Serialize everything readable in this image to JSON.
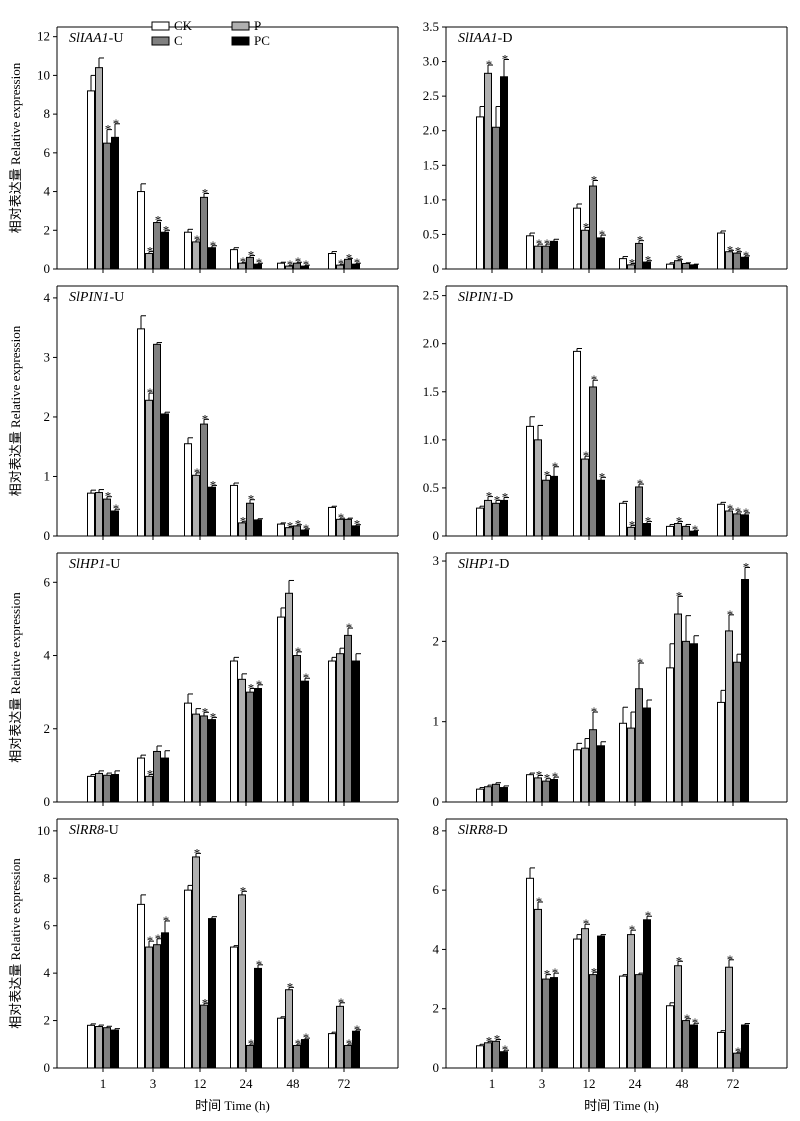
{
  "figure": {
    "ylabel": "相对表达量 Relative expression",
    "xlabel": "时间 Time (h)"
  },
  "legend": {
    "placement": "top-center of first panel",
    "items": [
      {
        "label": "CK",
        "color": "#ffffff"
      },
      {
        "label": "P",
        "color": "#b0b0b0"
      },
      {
        "label": "C",
        "color": "#808080"
      },
      {
        "label": "PC",
        "color": "#000000"
      }
    ]
  },
  "colors": {
    "CK": "#ffffff",
    "P": "#b0b0b0",
    "C": "#808080",
    "PC": "#000000",
    "axis": "#000000"
  },
  "chart_data": [
    {
      "type": "bar",
      "gene": "SlIAA1",
      "suffix": "-U",
      "categories": [
        "1",
        "3",
        "12",
        "24",
        "48",
        "72"
      ],
      "ylim": [
        0,
        12.5
      ],
      "yticks": [
        0,
        2,
        4,
        6,
        8,
        10,
        12
      ],
      "ytick_labels": [
        "0",
        "2",
        "4",
        "6",
        "8",
        "10",
        "12"
      ],
      "series": [
        {
          "name": "CK",
          "values": [
            9.2,
            4.0,
            1.9,
            1.0,
            0.3,
            0.8
          ],
          "err": [
            0.8,
            0.4,
            0.15,
            0.1,
            0.05,
            0.1
          ],
          "sig": [
            false,
            false,
            false,
            false,
            false,
            false
          ]
        },
        {
          "name": "P",
          "values": [
            10.4,
            0.8,
            1.4,
            0.3,
            0.15,
            0.2
          ],
          "err": [
            0.5,
            0.1,
            0.1,
            0.05,
            0.05,
            0.05
          ],
          "sig": [
            false,
            true,
            true,
            true,
            true,
            true
          ]
        },
        {
          "name": "C",
          "values": [
            6.5,
            2.4,
            3.7,
            0.6,
            0.3,
            0.5
          ],
          "err": [
            0.7,
            0.1,
            0.2,
            0.1,
            0.05,
            0.05
          ],
          "sig": [
            true,
            true,
            true,
            true,
            true,
            true
          ]
        },
        {
          "name": "PC",
          "values": [
            6.8,
            1.9,
            1.1,
            0.25,
            0.15,
            0.25
          ],
          "err": [
            0.7,
            0.1,
            0.1,
            0.05,
            0.05,
            0.05
          ],
          "sig": [
            true,
            true,
            true,
            true,
            true,
            true
          ]
        }
      ]
    },
    {
      "type": "bar",
      "gene": "SlIAA1",
      "suffix": "-D",
      "categories": [
        "1",
        "3",
        "12",
        "24",
        "48",
        "72"
      ],
      "ylim": [
        0,
        3.5
      ],
      "yticks": [
        0,
        0.5,
        1.0,
        1.5,
        2.0,
        2.5,
        3.0,
        3.5
      ],
      "ytick_labels": [
        "0",
        "0.5",
        "1.0",
        "1.5",
        "2.0",
        "2.5",
        "3.0",
        "3.5"
      ],
      "series": [
        {
          "name": "CK",
          "values": [
            2.2,
            0.48,
            0.88,
            0.15,
            0.07,
            0.52
          ],
          "err": [
            0.15,
            0.04,
            0.06,
            0.03,
            0.02,
            0.03
          ],
          "sig": [
            false,
            false,
            false,
            false,
            false,
            false
          ]
        },
        {
          "name": "P",
          "values": [
            2.83,
            0.33,
            0.56,
            0.06,
            0.12,
            0.25
          ],
          "err": [
            0.12,
            0.03,
            0.04,
            0.02,
            0.02,
            0.02
          ],
          "sig": [
            true,
            true,
            true,
            true,
            true,
            true
          ]
        },
        {
          "name": "C",
          "values": [
            2.05,
            0.33,
            1.2,
            0.37,
            0.08,
            0.23
          ],
          "err": [
            0.3,
            0.03,
            0.08,
            0.04,
            0.01,
            0.02
          ],
          "sig": [
            false,
            true,
            true,
            true,
            false,
            true
          ]
        },
        {
          "name": "PC",
          "values": [
            2.78,
            0.4,
            0.45,
            0.1,
            0.06,
            0.17
          ],
          "err": [
            0.25,
            0.03,
            0.04,
            0.02,
            0.01,
            0.02
          ],
          "sig": [
            true,
            false,
            true,
            true,
            false,
            true
          ]
        }
      ]
    },
    {
      "type": "bar",
      "gene": "SlPIN1",
      "suffix": "-U",
      "categories": [
        "1",
        "3",
        "12",
        "24",
        "48",
        "72"
      ],
      "ylim": [
        0,
        4.2
      ],
      "yticks": [
        0,
        1,
        2,
        3,
        4
      ],
      "ytick_labels": [
        "0",
        "1",
        "2",
        "3",
        "4"
      ],
      "series": [
        {
          "name": "CK",
          "values": [
            0.72,
            3.48,
            1.55,
            0.85,
            0.2,
            0.48
          ],
          "err": [
            0.05,
            0.22,
            0.1,
            0.04,
            0.02,
            0.02
          ],
          "sig": [
            false,
            false,
            false,
            false,
            false,
            false
          ]
        },
        {
          "name": "P",
          "values": [
            0.73,
            2.28,
            1.02,
            0.22,
            0.14,
            0.28
          ],
          "err": [
            0.05,
            0.12,
            0.04,
            0.02,
            0.02,
            0.02
          ],
          "sig": [
            false,
            true,
            true,
            true,
            true,
            true
          ]
        },
        {
          "name": "C",
          "values": [
            0.62,
            3.22,
            1.88,
            0.55,
            0.17,
            0.28
          ],
          "err": [
            0.04,
            0.03,
            0.08,
            0.06,
            0.02,
            0.02
          ],
          "sig": [
            true,
            false,
            true,
            true,
            true,
            false
          ]
        },
        {
          "name": "PC",
          "values": [
            0.42,
            2.05,
            0.82,
            0.27,
            0.1,
            0.17
          ],
          "err": [
            0.03,
            0.03,
            0.03,
            0.02,
            0.02,
            0.02
          ],
          "sig": [
            true,
            false,
            true,
            false,
            true,
            true
          ]
        }
      ]
    },
    {
      "type": "bar",
      "gene": "SlPIN1",
      "suffix": "-D",
      "categories": [
        "1",
        "3",
        "12",
        "24",
        "48",
        "72"
      ],
      "ylim": [
        0,
        2.6
      ],
      "yticks": [
        0,
        0.5,
        1.0,
        1.5,
        2.0,
        2.5
      ],
      "ytick_labels": [
        "0",
        "0.5",
        "1.0",
        "1.5",
        "2.0",
        "2.5"
      ],
      "series": [
        {
          "name": "CK",
          "values": [
            0.29,
            1.14,
            1.92,
            0.34,
            0.1,
            0.33
          ],
          "err": [
            0.02,
            0.1,
            0.03,
            0.02,
            0.02,
            0.02
          ],
          "sig": [
            false,
            false,
            false,
            false,
            false,
            false
          ]
        },
        {
          "name": "P",
          "values": [
            0.37,
            1.0,
            0.8,
            0.09,
            0.13,
            0.26
          ],
          "err": [
            0.04,
            0.15,
            0.03,
            0.02,
            0.02,
            0.02
          ],
          "sig": [
            true,
            false,
            true,
            true,
            true,
            true
          ]
        },
        {
          "name": "C",
          "values": [
            0.34,
            0.58,
            1.55,
            0.51,
            0.1,
            0.23
          ],
          "err": [
            0.03,
            0.05,
            0.07,
            0.03,
            0.02,
            0.02
          ],
          "sig": [
            true,
            true,
            true,
            true,
            false,
            true
          ]
        },
        {
          "name": "PC",
          "values": [
            0.37,
            0.62,
            0.58,
            0.13,
            0.05,
            0.22
          ],
          "err": [
            0.03,
            0.1,
            0.03,
            0.02,
            0.01,
            0.02
          ],
          "sig": [
            true,
            true,
            true,
            true,
            true,
            true
          ]
        }
      ]
    },
    {
      "type": "bar",
      "gene": "SlHP1",
      "suffix": "-U",
      "categories": [
        "1",
        "3",
        "12",
        "24",
        "48",
        "72"
      ],
      "ylim": [
        0,
        6.8
      ],
      "yticks": [
        0,
        2,
        4,
        6
      ],
      "ytick_labels": [
        "0",
        "2",
        "4",
        "6"
      ],
      "series": [
        {
          "name": "CK",
          "values": [
            0.7,
            1.2,
            2.7,
            3.85,
            5.05,
            3.85
          ],
          "err": [
            0.05,
            0.08,
            0.25,
            0.1,
            0.25,
            0.1
          ],
          "sig": [
            false,
            false,
            false,
            false,
            false,
            false
          ]
        },
        {
          "name": "P",
          "values": [
            0.78,
            0.7,
            2.4,
            3.35,
            5.7,
            4.05
          ],
          "err": [
            0.07,
            0.05,
            0.15,
            0.15,
            0.35,
            0.15
          ],
          "sig": [
            false,
            true,
            false,
            false,
            false,
            false
          ]
        },
        {
          "name": "C",
          "values": [
            0.73,
            1.38,
            2.35,
            3.0,
            4.0,
            4.55
          ],
          "err": [
            0.06,
            0.15,
            0.1,
            0.1,
            0.1,
            0.2
          ],
          "sig": [
            false,
            false,
            true,
            true,
            true,
            true
          ]
        },
        {
          "name": "PC",
          "values": [
            0.75,
            1.2,
            2.25,
            3.1,
            3.3,
            3.85
          ],
          "err": [
            0.1,
            0.2,
            0.06,
            0.1,
            0.08,
            0.2
          ],
          "sig": [
            false,
            false,
            true,
            true,
            true,
            false
          ]
        }
      ]
    },
    {
      "type": "bar",
      "gene": "SlHP1",
      "suffix": "-D",
      "categories": [
        "1",
        "3",
        "12",
        "24",
        "48",
        "72"
      ],
      "ylim": [
        0,
        3.1
      ],
      "yticks": [
        0,
        1,
        2,
        3
      ],
      "ytick_labels": [
        "0",
        "1",
        "2",
        "3"
      ],
      "series": [
        {
          "name": "CK",
          "values": [
            0.16,
            0.34,
            0.65,
            0.98,
            1.67,
            1.24
          ],
          "err": [
            0.02,
            0.02,
            0.08,
            0.2,
            0.3,
            0.15
          ],
          "sig": [
            false,
            false,
            false,
            false,
            false,
            false
          ]
        },
        {
          "name": "P",
          "values": [
            0.19,
            0.3,
            0.67,
            0.92,
            2.34,
            2.13
          ],
          "err": [
            0.02,
            0.03,
            0.12,
            0.2,
            0.22,
            0.2
          ],
          "sig": [
            false,
            true,
            false,
            false,
            true,
            true
          ]
        },
        {
          "name": "C",
          "values": [
            0.22,
            0.26,
            0.9,
            1.41,
            2.0,
            1.74
          ],
          "err": [
            0.02,
            0.03,
            0.22,
            0.32,
            0.32,
            0.1
          ],
          "sig": [
            false,
            true,
            true,
            true,
            false,
            false
          ]
        },
        {
          "name": "PC",
          "values": [
            0.18,
            0.28,
            0.7,
            1.17,
            1.97,
            2.77
          ],
          "err": [
            0.02,
            0.03,
            0.05,
            0.1,
            0.1,
            0.15
          ],
          "sig": [
            false,
            true,
            false,
            false,
            false,
            true
          ]
        }
      ]
    },
    {
      "type": "bar",
      "gene": "SlRR8",
      "suffix": "-U",
      "categories": [
        "1",
        "3",
        "12",
        "24",
        "48",
        "72"
      ],
      "ylim": [
        0,
        10.5
      ],
      "yticks": [
        0,
        2,
        4,
        6,
        8,
        10
      ],
      "ytick_labels": [
        "0",
        "2",
        "4",
        "6",
        "8",
        "10"
      ],
      "series": [
        {
          "name": "CK",
          "values": [
            1.8,
            6.9,
            7.5,
            5.1,
            2.1,
            1.45
          ],
          "err": [
            0.06,
            0.4,
            0.2,
            0.06,
            0.06,
            0.06
          ],
          "sig": [
            false,
            false,
            false,
            false,
            false,
            false
          ]
        },
        {
          "name": "P",
          "values": [
            1.75,
            5.1,
            8.9,
            7.3,
            3.3,
            2.6
          ],
          "err": [
            0.06,
            0.25,
            0.15,
            0.15,
            0.1,
            0.15
          ],
          "sig": [
            false,
            true,
            true,
            true,
            true,
            true
          ]
        },
        {
          "name": "C",
          "values": [
            1.7,
            5.2,
            2.65,
            0.95,
            0.95,
            0.95
          ],
          "err": [
            0.06,
            0.25,
            0.08,
            0.06,
            0.06,
            0.06
          ],
          "sig": [
            false,
            true,
            true,
            true,
            true,
            true
          ]
        },
        {
          "name": "PC",
          "values": [
            1.6,
            5.7,
            6.3,
            4.2,
            1.2,
            1.55
          ],
          "err": [
            0.06,
            0.5,
            0.08,
            0.15,
            0.06,
            0.06
          ],
          "sig": [
            false,
            true,
            false,
            true,
            true,
            true
          ]
        }
      ]
    },
    {
      "type": "bar",
      "gene": "SlRR8",
      "suffix": "-D",
      "categories": [
        "1",
        "3",
        "12",
        "24",
        "48",
        "72"
      ],
      "ylim": [
        0,
        8.4
      ],
      "yticks": [
        0,
        2,
        4,
        6,
        8
      ],
      "ytick_labels": [
        "0",
        "2",
        "4",
        "6",
        "8"
      ],
      "series": [
        {
          "name": "CK",
          "values": [
            0.75,
            6.4,
            4.35,
            3.1,
            2.1,
            1.2
          ],
          "err": [
            0.05,
            0.35,
            0.15,
            0.05,
            0.1,
            0.06
          ],
          "sig": [
            false,
            false,
            false,
            false,
            false,
            false
          ]
        },
        {
          "name": "P",
          "values": [
            0.85,
            5.35,
            4.7,
            4.5,
            3.45,
            3.4
          ],
          "err": [
            0.05,
            0.25,
            0.15,
            0.15,
            0.15,
            0.25
          ],
          "sig": [
            true,
            true,
            true,
            true,
            true,
            true
          ]
        },
        {
          "name": "C",
          "values": [
            0.9,
            3.0,
            3.15,
            3.15,
            1.6,
            0.5
          ],
          "err": [
            0.06,
            0.15,
            0.08,
            0.05,
            0.06,
            0.04
          ],
          "sig": [
            true,
            true,
            true,
            false,
            true,
            true
          ]
        },
        {
          "name": "PC",
          "values": [
            0.55,
            3.05,
            4.45,
            5.0,
            1.45,
            1.45
          ],
          "err": [
            0.05,
            0.15,
            0.05,
            0.12,
            0.06,
            0.05
          ],
          "sig": [
            true,
            true,
            false,
            true,
            true,
            false
          ]
        }
      ]
    }
  ]
}
